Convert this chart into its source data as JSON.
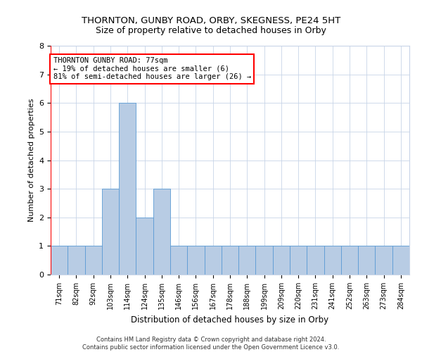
{
  "title": "THORNTON, GUNBY ROAD, ORBY, SKEGNESS, PE24 5HT",
  "subtitle": "Size of property relative to detached houses in Orby",
  "xlabel": "Distribution of detached houses by size in Orby",
  "ylabel": "Number of detached properties",
  "categories": [
    "71sqm",
    "82sqm",
    "92sqm",
    "103sqm",
    "114sqm",
    "124sqm",
    "135sqm",
    "146sqm",
    "156sqm",
    "167sqm",
    "178sqm",
    "188sqm",
    "199sqm",
    "209sqm",
    "220sqm",
    "231sqm",
    "241sqm",
    "252sqm",
    "263sqm",
    "273sqm",
    "284sqm"
  ],
  "values": [
    1,
    1,
    1,
    3,
    6,
    2,
    3,
    1,
    1,
    1,
    1,
    1,
    1,
    1,
    1,
    1,
    1,
    1,
    1,
    1,
    1
  ],
  "bar_color": "#b8cce4",
  "bar_edge_color": "#5b9bd5",
  "ylim": [
    0,
    8
  ],
  "yticks": [
    0,
    1,
    2,
    3,
    4,
    5,
    6,
    7,
    8
  ],
  "annotation_line1": "THORNTON GUNBY ROAD: 77sqm",
  "annotation_line2": "← 19% of detached houses are smaller (6)",
  "annotation_line3": "81% of semi-detached houses are larger (26) →",
  "annotation_box_color": "#ffffff",
  "annotation_box_edge": "#ff0000",
  "vline_color": "#ff0000",
  "vline_x": -0.5,
  "footer_line1": "Contains HM Land Registry data © Crown copyright and database right 2024.",
  "footer_line2": "Contains public sector information licensed under the Open Government Licence v3.0.",
  "background_color": "#ffffff",
  "grid_color": "#c8d4e8"
}
